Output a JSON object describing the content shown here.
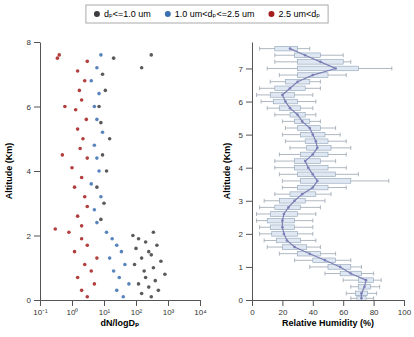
{
  "chart_data": [
    {
      "type": "scatter",
      "log": "x",
      "legend": "top",
      "xlabel": "dN/logDₚ",
      "ylabel": "Altitude (Km)",
      "xlim": [
        0.1,
        10000
      ],
      "xticks": [
        {
          "value": 0.1,
          "label": "10⁻¹"
        },
        {
          "value": 1,
          "label": "10⁰"
        },
        {
          "value": 10,
          "label": "10¹"
        },
        {
          "value": 100,
          "label": "10²"
        },
        {
          "value": 1000,
          "label": "10³"
        },
        {
          "value": 10000,
          "label": "10⁴"
        }
      ],
      "ylim": [
        0,
        8
      ],
      "yticks": [
        0,
        2,
        4,
        6,
        8
      ],
      "series": [
        {
          "name": "dₚ<=1.0 um",
          "color": "#3d3d3d",
          "x": [
            300,
            150,
            500,
            250,
            120,
            400,
            200,
            800,
            180,
            350,
            90,
            600,
            150,
            300,
            250,
            100,
            450,
            200,
            120,
            80,
            350,
            8,
            10,
            6,
            12,
            9,
            15,
            8,
            7,
            11,
            9,
            20,
            150,
            300
          ],
          "values": [
            0.1,
            0.2,
            0.3,
            0.4,
            0.5,
            0.6,
            0.7,
            0.8,
            0.9,
            1.0,
            1.1,
            1.2,
            1.3,
            1.4,
            1.5,
            1.6,
            1.7,
            1.8,
            1.9,
            2.0,
            2.1,
            2.5,
            3.0,
            3.5,
            4.0,
            4.5,
            5.0,
            5.5,
            6.0,
            6.5,
            7.0,
            7.5,
            7.2,
            7.6
          ]
        },
        {
          "name": "1.0 um<dₚ<=2.5 um",
          "color": "#3a6fb0",
          "x": [
            40,
            25,
            60,
            30,
            20,
            45,
            15,
            35,
            25,
            18,
            12,
            6,
            5,
            8,
            4,
            7,
            6,
            5,
            9,
            6,
            5,
            7,
            4,
            6,
            8
          ],
          "values": [
            0.1,
            0.3,
            0.5,
            0.7,
            0.9,
            1.1,
            1.3,
            1.5,
            1.7,
            1.9,
            2.1,
            2.4,
            2.8,
            3.2,
            3.6,
            4.0,
            4.4,
            4.8,
            5.2,
            5.6,
            6.0,
            6.4,
            6.8,
            7.2,
            7.6
          ]
        },
        {
          "name": "2.5 um<dₚ",
          "color": "#a51c1c",
          "x": [
            3,
            2,
            5,
            1.5,
            4,
            2.5,
            6,
            1.2,
            3,
            2,
            0.8,
            2,
            1.5,
            3,
            2.5,
            1.2,
            2,
            1,
            3,
            1.8,
            2.2,
            1.5,
            2.8,
            1.3,
            2,
            1.7,
            2.5,
            1.5,
            3,
            0.4,
            0.3,
            0.5,
            0.6,
            0.35
          ],
          "values": [
            0.1,
            0.3,
            0.5,
            0.7,
            0.9,
            1.1,
            1.3,
            1.5,
            1.7,
            1.9,
            2.1,
            2.3,
            2.6,
            2.9,
            3.2,
            3.5,
            3.8,
            4.1,
            4.4,
            4.7,
            5.0,
            5.3,
            5.6,
            5.9,
            6.2,
            6.5,
            6.8,
            7.1,
            7.4,
            7.6,
            2.2,
            4.5,
            6.0,
            7.5
          ]
        }
      ]
    },
    {
      "type": "box",
      "orientation": "horizontal",
      "color": "#7b7fb5",
      "xlabel": "Relative Humidity (%)",
      "ylabel": "Altitude (Km)",
      "xlim": [
        0,
        100
      ],
      "xticks": [
        0,
        20,
        40,
        60,
        80,
        100
      ],
      "ylim": [
        0,
        7.8
      ],
      "yticks": [
        0,
        1,
        2,
        3,
        4,
        5,
        6,
        7
      ],
      "y": [
        7.6,
        7.4,
        7.2,
        7.0,
        6.8,
        6.6,
        6.4,
        6.2,
        6.0,
        5.8,
        5.6,
        5.4,
        5.2,
        5.0,
        4.8,
        4.6,
        4.4,
        4.2,
        4.0,
        3.8,
        3.6,
        3.4,
        3.2,
        3.0,
        2.8,
        2.6,
        2.4,
        2.2,
        2.0,
        1.8,
        1.6,
        1.4,
        1.2,
        1.0,
        0.8,
        0.6,
        0.4,
        0.2,
        0.05
      ],
      "values": [
        25,
        35,
        45,
        55,
        40,
        30,
        25,
        20,
        22,
        25,
        30,
        33,
        38,
        40,
        42,
        43,
        40,
        35,
        37,
        40,
        43,
        40,
        33,
        28,
        24,
        21,
        20,
        20,
        21,
        23,
        28,
        38,
        48,
        58,
        65,
        75,
        74,
        72,
        72
      ],
      "q1": [
        15,
        28,
        30,
        30,
        30,
        22,
        15,
        12,
        14,
        18,
        25,
        28,
        30,
        32,
        35,
        36,
        32,
        28,
        28,
        30,
        32,
        30,
        25,
        18,
        15,
        12,
        10,
        12,
        13,
        16,
        20,
        30,
        40,
        50,
        58,
        70,
        70,
        68,
        69
      ],
      "q3": [
        30,
        45,
        60,
        70,
        50,
        38,
        35,
        28,
        30,
        32,
        35,
        38,
        45,
        48,
        50,
        52,
        50,
        45,
        50,
        55,
        65,
        50,
        42,
        35,
        32,
        30,
        28,
        28,
        30,
        32,
        36,
        45,
        55,
        65,
        72,
        80,
        78,
        76,
        75
      ],
      "min": [
        5,
        15,
        15,
        10,
        18,
        12,
        5,
        3,
        6,
        10,
        15,
        20,
        22,
        20,
        22,
        25,
        18,
        15,
        15,
        18,
        20,
        20,
        15,
        8,
        5,
        3,
        3,
        5,
        5,
        8,
        10,
        18,
        28,
        38,
        48,
        60,
        65,
        62,
        65
      ],
      "max": [
        38,
        60,
        65,
        92,
        62,
        45,
        45,
        40,
        42,
        40,
        42,
        45,
        55,
        58,
        62,
        65,
        62,
        55,
        62,
        70,
        90,
        62,
        52,
        48,
        45,
        42,
        40,
        40,
        40,
        42,
        45,
        55,
        65,
        72,
        80,
        85,
        84,
        82,
        80
      ]
    }
  ]
}
